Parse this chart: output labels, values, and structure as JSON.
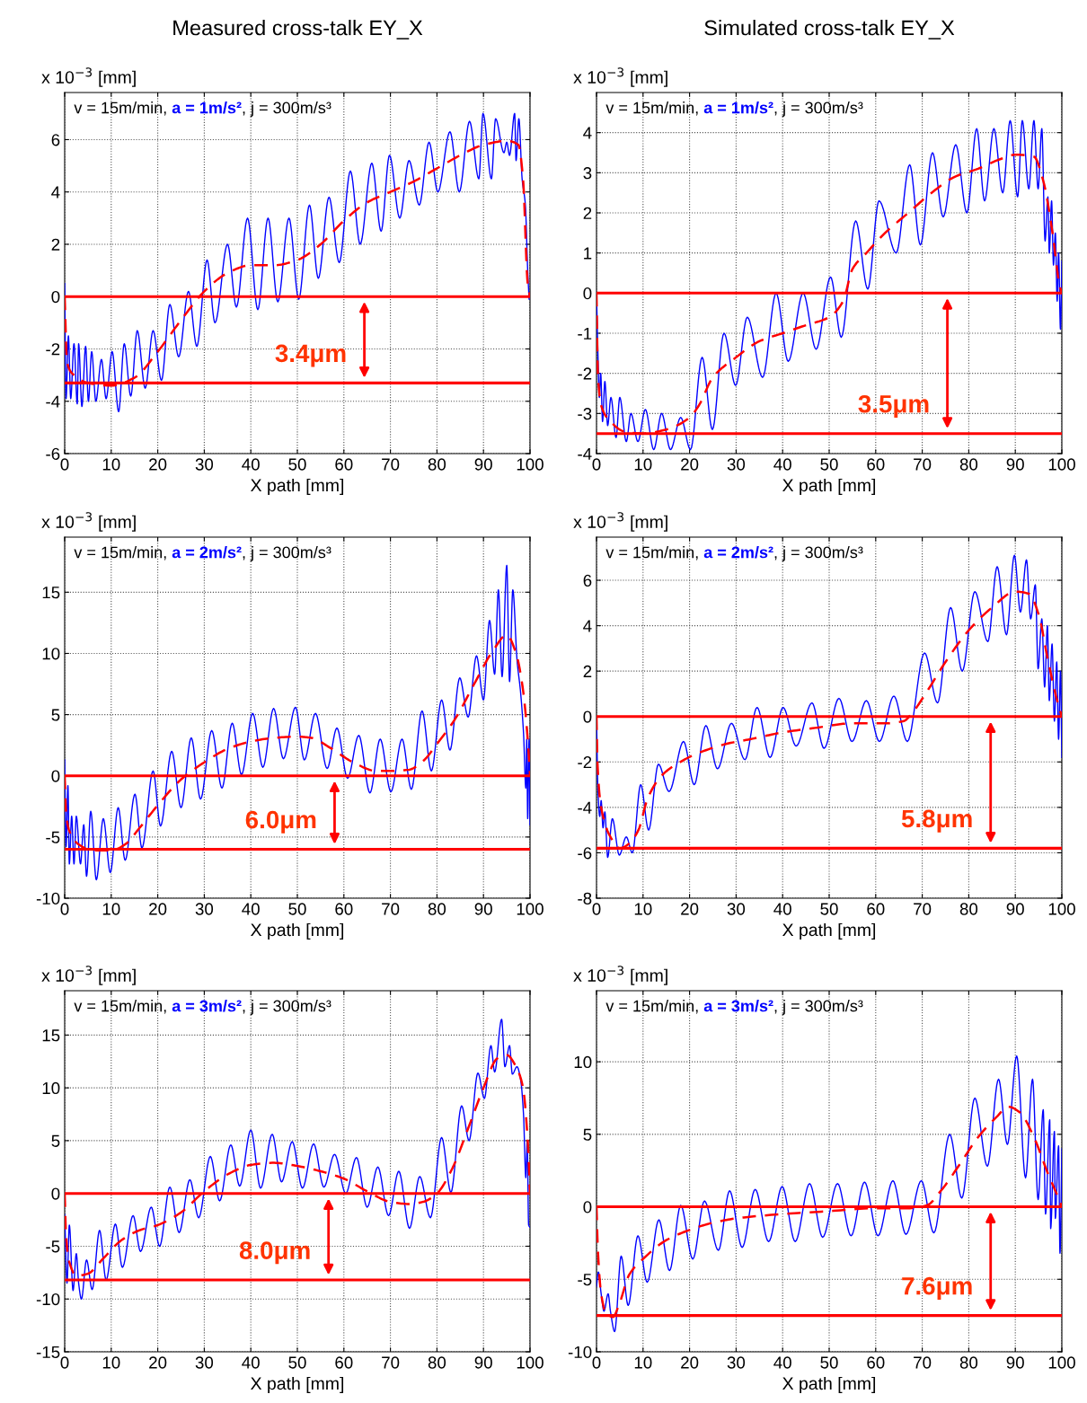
{
  "chart_data": [
    {
      "type": "line",
      "title": "Measured cross-talk EY_X",
      "subtitle": "v = 15m/min, a = 1m/s², j = 300m/s³",
      "xlabel": "X path [mm]",
      "ylabel": "x 10$^{−3}$ [mm]",
      "xlim": [
        0,
        100
      ],
      "xticks": [
        0,
        10,
        20,
        30,
        40,
        50,
        60,
        70,
        80,
        90,
        100
      ],
      "ylim": [
        -6,
        7.8
      ],
      "yticks": [
        -6,
        -4,
        -2,
        0,
        2,
        4,
        6
      ],
      "grid": true,
      "series": [
        {
          "color": "#0000ff",
          "line_style": "solid",
          "x": [
            0,
            0.3,
            0.8,
            1.3,
            2,
            2.7,
            3,
            3.7,
            4.5,
            5.1,
            5.8,
            6.7,
            7.9,
            8.9,
            10.2,
            11.6,
            12.8,
            14.2,
            15.6,
            17.3,
            19,
            20.8,
            22.6,
            24.5,
            26.6,
            28.4,
            30.6,
            32.3,
            35,
            36.9,
            39.3,
            41.5,
            43.7,
            45.8,
            48.2,
            50.3,
            52.6,
            54.5,
            56.8,
            59,
            61.4,
            63.5,
            66,
            68,
            69.8,
            72,
            74,
            76.2,
            78.3,
            80.2,
            82.8,
            84.8,
            87,
            89,
            89.9,
            91.7,
            92.6,
            94.4,
            95,
            95.6,
            96.7,
            97,
            97.6,
            98.3,
            99,
            99.5,
            99.8
          ],
          "values": [
            0.5,
            -3.9,
            -1.5,
            -3.9,
            -1.8,
            -4.1,
            -1.8,
            -4.2,
            -1.9,
            -4.0,
            -2.1,
            -4.0,
            -2.4,
            -3.9,
            -2.1,
            -4.4,
            -1.8,
            -3.8,
            -1.3,
            -3.5,
            -1.3,
            -3.2,
            -0.3,
            -2.3,
            0.2,
            -1.9,
            1.4,
            -1.0,
            2.0,
            -0.4,
            3.0,
            -0.5,
            3.0,
            -0.2,
            3.0,
            -0.1,
            3.5,
            0.7,
            3.8,
            1.3,
            4.8,
            2.0,
            5.1,
            2.5,
            5.4,
            3.0,
            5.2,
            3.5,
            5.9,
            4.0,
            6.3,
            4.0,
            6.7,
            4.5,
            7.0,
            4.5,
            6.8,
            5.5,
            5.9,
            5.4,
            7.0,
            5.2,
            6.8,
            4.5,
            3.5,
            1.0,
            -0.1
          ]
        },
        {
          "color": "#ff0000",
          "line_style": "dashed",
          "x": [
            0,
            0.5,
            2,
            5,
            10,
            15,
            20,
            25,
            30,
            35,
            40,
            45,
            50,
            55,
            60,
            65,
            70,
            75,
            80,
            85,
            90,
            95,
            97.5,
            98.5,
            99.5,
            100
          ],
          "values": [
            0,
            -2.5,
            -3.0,
            -3.3,
            -3.4,
            -3.1,
            -2.1,
            -0.9,
            0.2,
            0.9,
            1.2,
            1.2,
            1.4,
            2.0,
            2.9,
            3.6,
            4.0,
            4.4,
            4.9,
            5.4,
            5.8,
            5.95,
            5.8,
            4.5,
            0.5,
            0
          ]
        }
      ],
      "ref_lines": [
        {
          "axis": "y",
          "value": 0,
          "color": "#ff0000"
        },
        {
          "axis": "y",
          "value": -3.3,
          "color": "#ff0000"
        }
      ],
      "annotations": [
        {
          "text": "3.4μm",
          "x": 64.4,
          "y": -3.3
        }
      ]
    },
    {
      "type": "line",
      "title": "Simulated cross-talk EY_X",
      "subtitle": "v = 15m/min, a = 1m/s², j = 300m/s³",
      "xlabel": "X path [mm]",
      "ylabel": "x 10$^{−3}$ [mm]",
      "xlim": [
        0,
        100
      ],
      "xticks": [
        0,
        10,
        20,
        30,
        40,
        50,
        60,
        70,
        80,
        90,
        100
      ],
      "ylim": [
        -4,
        5
      ],
      "yticks": [
        -4,
        -3,
        -2,
        -1,
        0,
        1,
        2,
        3,
        4
      ],
      "grid": true,
      "series": [
        {
          "color": "#0000ff",
          "line_style": "solid",
          "x": [
            0,
            0.3,
            0.6,
            0.9,
            1.3,
            1.8,
            2.4,
            3.1,
            4.2,
            5,
            6.4,
            7.4,
            8.9,
            10.5,
            12.3,
            14,
            15.9,
            18.1,
            20.2,
            22.7,
            24.9,
            27.4,
            29.9,
            32.4,
            35.7,
            38.6,
            41.2,
            44.4,
            47.2,
            50.3,
            52.6,
            55.7,
            58.3,
            60.7,
            64.4,
            67.3,
            69.6,
            72.2,
            74.5,
            77.2,
            79.6,
            81.7,
            83.4,
            85.4,
            87.3,
            88.9,
            90.5,
            91.5,
            92.9,
            94,
            94.9,
            95.7,
            96.4,
            97,
            97.3,
            97.8,
            98.2,
            98.6,
            99,
            99.3,
            99.7,
            100
          ],
          "values": [
            0,
            -1.5,
            -2.6,
            -2.0,
            -3.2,
            -2.2,
            -3.3,
            -2.6,
            -3.6,
            -2.6,
            -3.7,
            -3.0,
            -3.7,
            -2.9,
            -3.9,
            -3.0,
            -3.9,
            -3.1,
            -3.9,
            -1.6,
            -3.4,
            -1.0,
            -2.3,
            -0.6,
            -2.1,
            0.0,
            -1.7,
            0.0,
            -1.4,
            0.4,
            -1.1,
            1.8,
            0.1,
            2.3,
            1.0,
            3.2,
            1.2,
            3.5,
            1.9,
            3.7,
            2.0,
            4.1,
            2.3,
            4.1,
            2.5,
            4.3,
            2.4,
            4.3,
            2.6,
            4.3,
            2.6,
            4.1,
            1.3,
            2.4,
            1.0,
            2.3,
            0.7,
            1.5,
            -0.2,
            1.0,
            -0.9,
            0.8
          ]
        },
        {
          "color": "#ff0000",
          "line_style": "dashed",
          "x": [
            0,
            0.3,
            1,
            3,
            6,
            10,
            15,
            20,
            22,
            25,
            30,
            35,
            40,
            45,
            50,
            53,
            55,
            58,
            62,
            67,
            72,
            77,
            82,
            87,
            90,
            94,
            96,
            98,
            99.5,
            100
          ],
          "values": [
            0,
            -2.0,
            -2.8,
            -3.2,
            -3.45,
            -3.5,
            -3.4,
            -3.1,
            -2.8,
            -2.1,
            -1.6,
            -1.2,
            -1.0,
            -0.8,
            -0.6,
            -0.2,
            0.6,
            1.0,
            1.5,
            2.0,
            2.5,
            2.9,
            3.1,
            3.35,
            3.45,
            3.4,
            2.8,
            1.5,
            0.2,
            0
          ]
        }
      ],
      "ref_lines": [
        {
          "axis": "y",
          "value": 0,
          "color": "#ff0000"
        },
        {
          "axis": "y",
          "value": -3.5,
          "color": "#ff0000"
        }
      ],
      "annotations": [
        {
          "text": "3.5μm",
          "x": 75.4,
          "y": -3.5
        }
      ]
    },
    {
      "type": "line",
      "subtitle": "v = 15m/min, a = 2m/s², j = 300m/s³",
      "xlabel": "X path [mm]",
      "ylabel": "x 10$^{−3}$ [mm]",
      "xlim": [
        0,
        100
      ],
      "xticks": [
        0,
        10,
        20,
        30,
        40,
        50,
        60,
        70,
        80,
        90,
        100
      ],
      "ylim": [
        -10,
        19.5
      ],
      "yticks": [
        -10,
        -5,
        0,
        5,
        10,
        15
      ],
      "grid": true,
      "series": [
        {
          "color": "#0000ff",
          "line_style": "solid",
          "x": [
            0,
            0.3,
            0.7,
            1,
            1.5,
            2,
            2.5,
            3.4,
            4.1,
            4.7,
            5.6,
            6.8,
            8.3,
            9.8,
            11.5,
            13,
            15.1,
            16.6,
            19,
            20.6,
            23,
            25,
            27.2,
            29.2,
            31.6,
            33.8,
            36,
            38,
            40.4,
            42.6,
            44.9,
            47,
            49.6,
            51.5,
            53.9,
            56.4,
            58.5,
            60.8,
            63.2,
            65.6,
            67.8,
            70.1,
            72.5,
            74.5,
            76.8,
            78.8,
            81,
            82.8,
            84.9,
            86.7,
            88.5,
            90,
            91.3,
            92.4,
            93.2,
            94,
            95,
            95.6,
            96.3,
            97.2,
            98,
            98.6,
            99.1,
            99.3,
            99.5,
            99.8,
            100
          ],
          "values": [
            1.3,
            -5.8,
            -0.8,
            -7.2,
            -3.3,
            -7.2,
            -3.3,
            -7.2,
            -4.0,
            -8.2,
            -2.9,
            -8.5,
            -3.5,
            -7.9,
            -2.6,
            -6.9,
            -1.5,
            -5.9,
            0.4,
            -4.1,
            2.0,
            -2.6,
            3.1,
            -1.9,
            3.7,
            -1.0,
            4.3,
            0.1,
            5.1,
            0.7,
            5.5,
            1.4,
            5.6,
            1.3,
            5.1,
            0.6,
            3.9,
            -0.2,
            3.3,
            -1.4,
            3.0,
            -1.3,
            3.0,
            -1.1,
            5.3,
            0.4,
            6.2,
            2.1,
            8.0,
            4.8,
            9.8,
            6.2,
            12.7,
            8.3,
            15.2,
            8.1,
            17.2,
            7.7,
            15.2,
            9.5,
            6.7,
            3.5,
            -1.0,
            3.0,
            -3.5,
            3.0,
            -4.0
          ]
        },
        {
          "color": "#ff0000",
          "line_style": "dashed",
          "x": [
            0,
            0.3,
            1,
            3,
            6,
            10,
            13,
            16,
            20,
            25,
            30,
            35,
            40,
            45,
            50,
            53,
            57,
            62,
            67,
            70,
            74,
            77,
            80,
            84,
            88,
            92,
            95,
            97,
            98.5,
            99.5,
            100
          ],
          "values": [
            0,
            -3.0,
            -4.5,
            -5.6,
            -6.1,
            -6.1,
            -5.6,
            -4.3,
            -2.4,
            -0.3,
            1.1,
            2.2,
            2.8,
            3.1,
            3.2,
            3.1,
            2.3,
            1.1,
            0.4,
            0.4,
            0.5,
            1.2,
            2.6,
            4.7,
            7.5,
            10.2,
            11.5,
            10.0,
            7.0,
            3,
            0
          ]
        }
      ],
      "ref_lines": [
        {
          "axis": "y",
          "value": 0,
          "color": "#ff0000"
        },
        {
          "axis": "y",
          "value": -6.0,
          "color": "#ff0000"
        }
      ],
      "annotations": [
        {
          "text": "6.0μm",
          "x": 58,
          "y": -6.0
        }
      ]
    },
    {
      "type": "line",
      "subtitle": "v = 15m/min, a = 2m/s², j = 300m/s³",
      "xlabel": "X path [mm]",
      "ylabel": "x 10$^{−3}$ [mm]",
      "xlim": [
        0,
        100
      ],
      "xticks": [
        0,
        10,
        20,
        30,
        40,
        50,
        60,
        70,
        80,
        90,
        100
      ],
      "ylim": [
        -8,
        7.9
      ],
      "yticks": [
        -8,
        -6,
        -4,
        -2,
        0,
        2,
        4,
        6
      ],
      "grid": true,
      "series": [
        {
          "color": "#0000ff",
          "line_style": "solid",
          "x": [
            0,
            0.3,
            0.7,
            1,
            1.4,
            1.8,
            2.4,
            3.4,
            4.9,
            6.4,
            7.7,
            9.5,
            11.2,
            13.3,
            15.6,
            18.7,
            21,
            23.5,
            26,
            29,
            31.9,
            34.5,
            37.3,
            40.1,
            42.9,
            46.3,
            48.9,
            52.1,
            54.9,
            58,
            60.8,
            63.9,
            66.8,
            70.5,
            73.3,
            76.1,
            78.6,
            81.3,
            84.1,
            86.1,
            88.1,
            89.8,
            91.1,
            92.4,
            93.3,
            94.3,
            94.9,
            95.7,
            96.3,
            96.9,
            97.3,
            97.9,
            98.4,
            98.9,
            99.3,
            99.7,
            100
          ],
          "values": [
            0,
            -3.2,
            -4.4,
            -3.7,
            -4.9,
            -4.2,
            -6.2,
            -4.5,
            -6.1,
            -5.3,
            -6.0,
            -3.0,
            -5.0,
            -2.1,
            -3.3,
            -1.1,
            -3.0,
            -0.4,
            -2.3,
            -0.3,
            -1.9,
            0.4,
            -1.8,
            0.4,
            -1.3,
            0.6,
            -1.4,
            0.8,
            -1.1,
            0.7,
            -1.1,
            0.9,
            -1.1,
            2.8,
            0.6,
            4.8,
            2.0,
            5.5,
            3.3,
            6.6,
            3.6,
            7.1,
            4.6,
            6.9,
            4.3,
            5.8,
            2.1,
            4.3,
            1.3,
            4.0,
            0.7,
            3.2,
            -0.2,
            2.4,
            -1.0,
            2.0,
            -1.8
          ]
        },
        {
          "color": "#ff0000",
          "line_style": "dashed",
          "x": [
            0,
            0.2,
            1,
            3,
            5,
            7,
            9,
            11,
            14,
            18,
            22,
            28,
            33,
            40,
            47,
            55,
            62,
            66,
            68,
            71,
            75,
            80,
            85,
            90,
            93,
            95,
            97,
            99,
            100
          ],
          "values": [
            0,
            -2.0,
            -4.0,
            -5.3,
            -5.8,
            -5.6,
            -5.0,
            -3.6,
            -2.6,
            -2.0,
            -1.6,
            -1.2,
            -1.0,
            -0.7,
            -0.5,
            -0.3,
            -0.3,
            -0.2,
            0.2,
            1.1,
            2.4,
            3.8,
            4.8,
            5.5,
            5.4,
            4.5,
            2.5,
            0.7,
            0
          ]
        }
      ],
      "ref_lines": [
        {
          "axis": "y",
          "value": 0,
          "color": "#ff0000"
        },
        {
          "axis": "y",
          "value": -5.8,
          "color": "#ff0000"
        }
      ],
      "annotations": [
        {
          "text": "5.8μm",
          "x": 84.7,
          "y": -5.8
        }
      ]
    },
    {
      "type": "line",
      "subtitle": "v = 15m/min, a = 3m/s², j = 300m/s³",
      "xlabel": "X path [mm]",
      "ylabel": "x 10$^{−3}$ [mm]",
      "xlim": [
        0,
        100
      ],
      "xticks": [
        0,
        10,
        20,
        30,
        40,
        50,
        60,
        70,
        80,
        90,
        100
      ],
      "ylim": [
        -15,
        19.2
      ],
      "yticks": [
        -15,
        -10,
        -5,
        0,
        5,
        10,
        15
      ],
      "grid": true,
      "series": [
        {
          "color": "#0000ff",
          "line_style": "solid",
          "x": [
            0,
            0.5,
            1,
            1.8,
            2.5,
            3,
            3.6,
            4.7,
            5.9,
            7.5,
            8.9,
            10.9,
            12.4,
            14.7,
            16.3,
            18.6,
            20.4,
            22.6,
            24.6,
            26.9,
            28.8,
            31.3,
            33.3,
            35.7,
            37.6,
            40,
            42.1,
            44.6,
            46.6,
            48.9,
            51.1,
            53.5,
            55.7,
            58,
            60.4,
            62.7,
            65,
            67.3,
            69.6,
            71.8,
            74.1,
            76.3,
            78.6,
            81,
            83,
            85.3,
            86.9,
            88.8,
            90.2,
            91.6,
            92.4,
            93.9,
            94.6,
            95.6,
            96.2,
            97.2,
            98,
            98.6,
            99.1,
            99.4,
            99.7,
            100
          ],
          "values": [
            -2.0,
            -8.5,
            -3.0,
            -9.2,
            -5.7,
            -8.5,
            -10.0,
            -6.3,
            -9.1,
            -3.5,
            -8.2,
            -2.9,
            -7.0,
            -2.1,
            -5.5,
            -1.3,
            -5.0,
            0.6,
            -3.7,
            1.3,
            -2.3,
            3.5,
            -0.7,
            4.6,
            0.7,
            6.0,
            0.5,
            5.6,
            1.1,
            4.9,
            0.5,
            4.7,
            0.6,
            3.7,
            0.0,
            3.4,
            -1.3,
            2.5,
            -2.1,
            2.1,
            -3.3,
            1.6,
            -2.3,
            5.3,
            0.1,
            8.3,
            5.0,
            11.4,
            9.0,
            14.0,
            11.5,
            16.5,
            12.0,
            14.0,
            11.3,
            12.0,
            10.7,
            7.5,
            1.5,
            5.0,
            -3.0,
            -3.2
          ]
        },
        {
          "color": "#ff0000",
          "line_style": "dashed",
          "x": [
            0,
            0.3,
            1,
            2.5,
            5,
            8,
            12,
            16,
            20,
            25,
            30,
            35,
            40,
            45,
            50,
            55,
            60,
            65,
            70,
            74,
            77,
            80,
            83,
            87,
            90,
            93,
            95,
            97,
            98.5,
            99.5,
            100
          ],
          "values": [
            0,
            -4.0,
            -6.5,
            -7.8,
            -7.6,
            -6.3,
            -4.5,
            -3.5,
            -3.0,
            -1.8,
            0.2,
            1.8,
            2.7,
            2.9,
            2.6,
            2.1,
            1.4,
            0.2,
            -0.8,
            -1.0,
            -0.8,
            0.0,
            2.1,
            6.5,
            10.0,
            12.8,
            13.1,
            12.0,
            10.0,
            5.0,
            0.0
          ]
        }
      ],
      "ref_lines": [
        {
          "axis": "y",
          "value": 0,
          "color": "#ff0000"
        },
        {
          "axis": "y",
          "value": -8.2,
          "color": "#ff0000"
        }
      ],
      "annotations": [
        {
          "text": "8.0μm",
          "x": 56.7,
          "y": -8.2
        }
      ]
    },
    {
      "type": "line",
      "subtitle": "v = 15m/min, a = 3m/s², j = 300m/s³",
      "xlabel": "X path [mm]",
      "ylabel": "x 10$^{−3}$ [mm]",
      "xlim": [
        0,
        100
      ],
      "xticks": [
        0,
        10,
        20,
        30,
        40,
        50,
        60,
        70,
        80,
        90,
        100
      ],
      "ylim": [
        -10,
        14.9
      ],
      "yticks": [
        -10,
        -5,
        0,
        5,
        10
      ],
      "grid": true,
      "series": [
        {
          "color": "#0000ff",
          "line_style": "solid",
          "x": [
            0,
            0.4,
            1,
            1.6,
            2.5,
            3,
            3.9,
            5.3,
            6.8,
            8.9,
            10.9,
            13.4,
            15.7,
            18.1,
            20.7,
            23.2,
            26.2,
            28.6,
            31.3,
            34.1,
            37,
            39.9,
            42.7,
            45.8,
            48.6,
            51.8,
            54.7,
            57.6,
            60.5,
            63.7,
            66.5,
            69.8,
            72.5,
            75.9,
            78.5,
            81.3,
            84,
            86.4,
            88.3,
            90.3,
            92.2,
            93.7,
            94.9,
            96,
            96.5,
            97.4,
            97.6,
            98.4,
            98.6,
            99.3,
            99.6,
            100
          ],
          "values": [
            -5.5,
            -4.5,
            -6.0,
            -7.2,
            -6.0,
            -7.2,
            -8.6,
            -3.4,
            -6.8,
            -2.0,
            -5.2,
            -0.9,
            -4.4,
            0.1,
            -3.6,
            0.4,
            -3.0,
            1.1,
            -2.8,
            1.2,
            -2.4,
            1.4,
            -2.4,
            1.6,
            -2.1,
            1.6,
            -2.0,
            1.7,
            -2.0,
            1.8,
            -1.9,
            1.8,
            -1.8,
            5.0,
            0.6,
            7.5,
            2.8,
            8.8,
            4.3,
            10.4,
            2.0,
            8.8,
            0.5,
            6.7,
            -0.5,
            6.0,
            -1.5,
            5.2,
            -0.8,
            4.2,
            -3.2,
            4.0
          ]
        },
        {
          "color": "#ff0000",
          "line_style": "dashed",
          "x": [
            0,
            0.3,
            1,
            2,
            3.5,
            5,
            7,
            10,
            15,
            20,
            25,
            30,
            40,
            50,
            60,
            67,
            71,
            74,
            78,
            82,
            86,
            88.5,
            91,
            94,
            97,
            99,
            100
          ],
          "values": [
            0,
            -3.0,
            -6.0,
            -7.3,
            -7.6,
            -6.6,
            -4.7,
            -3.6,
            -2.3,
            -1.6,
            -1.1,
            -0.8,
            -0.5,
            -0.3,
            -0.1,
            -0.1,
            0.1,
            1.1,
            2.9,
            4.8,
            6.2,
            6.9,
            6.5,
            4.8,
            2.3,
            0.8,
            0
          ]
        }
      ],
      "ref_lines": [
        {
          "axis": "y",
          "value": 0,
          "color": "#ff0000"
        },
        {
          "axis": "y",
          "value": -7.5,
          "color": "#ff0000"
        }
      ],
      "annotations": [
        {
          "text": "7.6μm",
          "x": 84.7,
          "y": -7.5
        }
      ]
    }
  ]
}
